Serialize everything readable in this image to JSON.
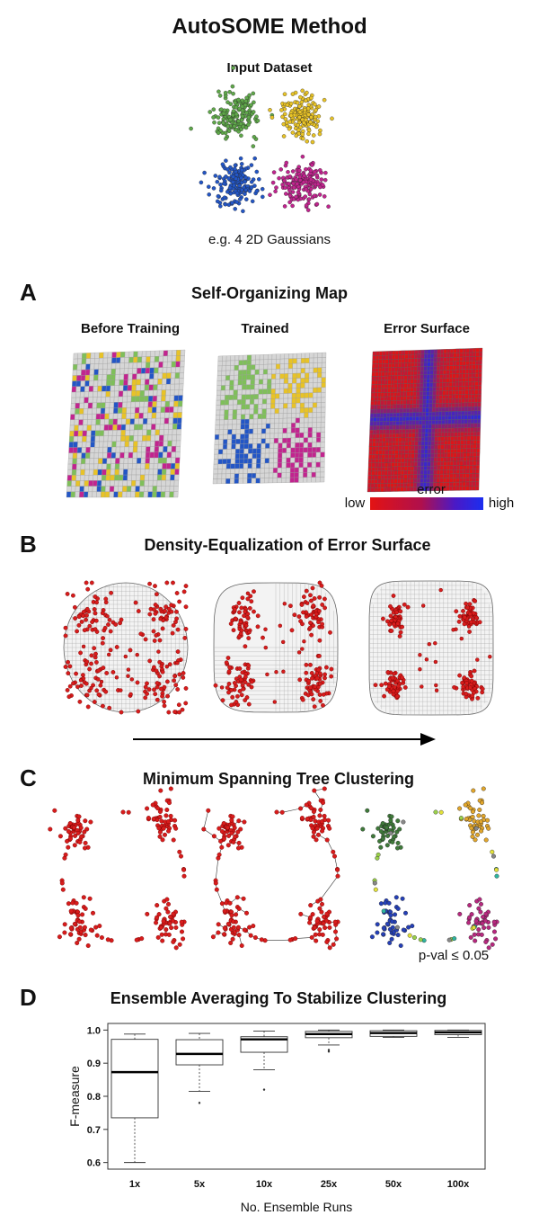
{
  "header": {
    "title": "AutoSOME Method"
  },
  "input": {
    "title": "Input Dataset",
    "caption": "e.g. 4 2D Gaussians",
    "colors": [
      "#5fa84a",
      "#e8c327",
      "#2356c6",
      "#c2248f"
    ]
  },
  "panel_a": {
    "letter": "A",
    "title": "Self-Organizing Map",
    "sub_before": "Before Training",
    "sub_trained": "Trained",
    "sub_error": "Error Surface",
    "error_label": "error",
    "low_label": "low",
    "high_label": "high",
    "cell_colors": [
      "#d6d6d6",
      "#e8c327",
      "#2356c6",
      "#c2248f",
      "#7fbf5a"
    ]
  },
  "panel_b": {
    "letter": "B",
    "title": "Density-Equalization of Error Surface"
  },
  "panel_c": {
    "letter": "C",
    "title": "Minimum Spanning Tree Clustering",
    "pval": "p-val ≤ 0.05"
  },
  "panel_d": {
    "letter": "D",
    "title": "Ensemble Averaging To Stabilize Clustering"
  },
  "chart_data": {
    "type": "box",
    "categories": [
      "1x",
      "5x",
      "10x",
      "25x",
      "50x",
      "100x"
    ],
    "ylabel": "F-measure",
    "xlabel": "No. Ensemble Runs",
    "ylim": [
      0.58,
      1.02
    ],
    "yticks": [
      0.6,
      0.7,
      0.8,
      0.9,
      1.0
    ],
    "ytick_labels": [
      "0.6",
      "0.7",
      "0.8",
      "0.9",
      "1.0"
    ],
    "boxes": [
      {
        "min": 0.6,
        "q1": 0.735,
        "median": 0.873,
        "q3": 0.972,
        "max": 0.988,
        "outliers": []
      },
      {
        "min": 0.815,
        "q1": 0.895,
        "median": 0.928,
        "q3": 0.971,
        "max": 0.99,
        "outliers": [
          0.78
        ]
      },
      {
        "min": 0.88,
        "q1": 0.933,
        "median": 0.972,
        "q3": 0.98,
        "max": 0.997,
        "outliers": [
          0.82
        ]
      },
      {
        "min": 0.955,
        "q1": 0.977,
        "median": 0.988,
        "q3": 0.996,
        "max": 1.0,
        "outliers": [
          0.94,
          0.935
        ]
      },
      {
        "min": 0.978,
        "q1": 0.981,
        "median": 0.991,
        "q3": 0.998,
        "max": 1.0,
        "outliers": []
      },
      {
        "min": 0.978,
        "q1": 0.986,
        "median": 0.993,
        "q3": 0.999,
        "max": 1.0,
        "outliers": []
      }
    ]
  }
}
